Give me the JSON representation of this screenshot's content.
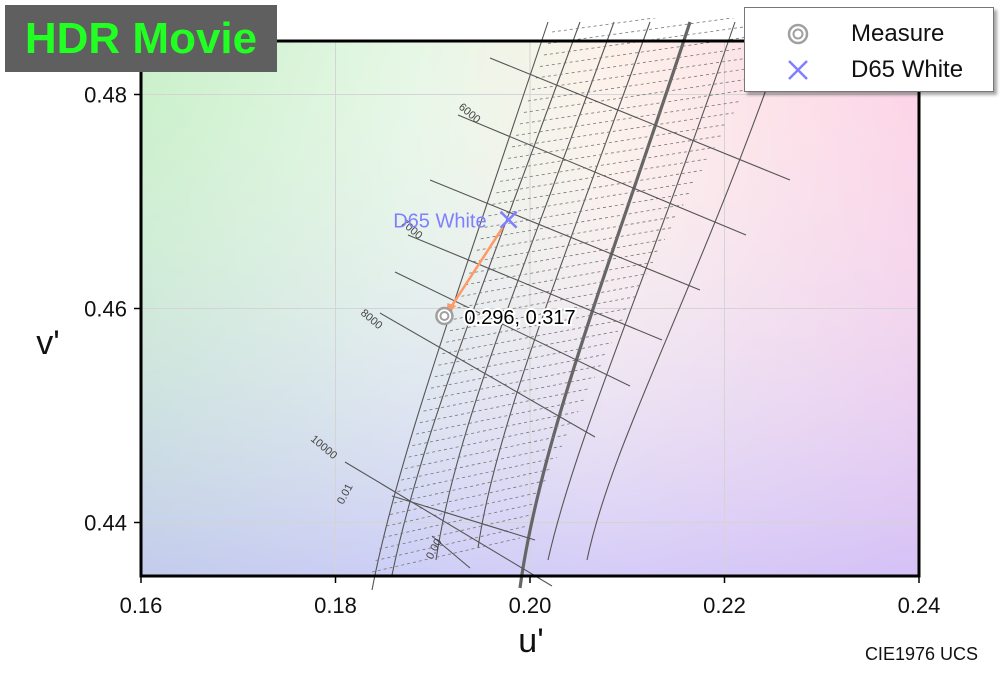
{
  "badge": {
    "text": "HDR Movie",
    "color": "#22ff22",
    "background": "#5f5f5f"
  },
  "legend": [
    {
      "label": "Measure",
      "marker": "double-circle",
      "color": "#a0a0a0"
    },
    {
      "label": "D65 White",
      "marker": "x",
      "color": "#7f7fff"
    }
  ],
  "footer_note": "CIE1976 UCS",
  "chart_data": {
    "type": "scatter",
    "xlabel": "u'",
    "ylabel": "v'",
    "xlim": [
      0.16,
      0.24
    ],
    "ylim": [
      0.435,
      0.485
    ],
    "xticks": [
      "0.16",
      "0.18",
      "0.20",
      "0.22",
      "0.24"
    ],
    "yticks": [
      "0.44",
      "0.46",
      "0.48"
    ],
    "grid": true,
    "legend_position": "top-right",
    "points": [
      {
        "series": "Measure",
        "u": 0.1912,
        "v": 0.4593,
        "label": "0.296,  0.317",
        "color": "#a0a0a0"
      },
      {
        "series": "D65 White",
        "u": 0.1978,
        "v": 0.4683,
        "label": "D65 White",
        "color": "#7f7fff"
      }
    ],
    "arrow": {
      "from": "D65 White",
      "to": "Measure",
      "color": "#ff9966"
    },
    "planckian_locus": {
      "duv_labels": [
        "0.00",
        "0.01"
      ],
      "cct_labels": [
        "6000",
        "7000",
        "8000",
        "10000"
      ]
    }
  }
}
